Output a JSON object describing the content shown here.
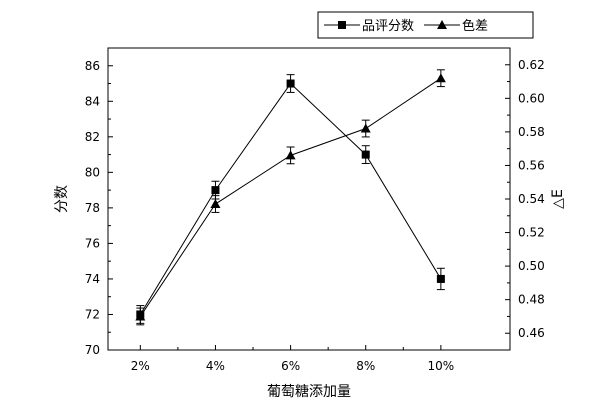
{
  "chart_data": {
    "type": "line",
    "categories": [
      "2%",
      "4%",
      "6%",
      "8%",
      "10%"
    ],
    "xlabel": "葡萄糖添加量",
    "ylabel_left": "分数",
    "ylabel_right": "△E",
    "ylim_left": [
      70,
      87
    ],
    "yticks_left": [
      70,
      72,
      74,
      76,
      78,
      80,
      82,
      84,
      86
    ],
    "ylim_right": [
      0.45,
      0.63
    ],
    "yticks_right": [
      0.46,
      0.48,
      0.5,
      0.52,
      0.54,
      0.56,
      0.58,
      0.6,
      0.62
    ],
    "grid": false,
    "legend_position": "top-right",
    "series": [
      {
        "name": "品评分数",
        "axis": "left",
        "marker": "square",
        "values": [
          72.0,
          79.0,
          85.0,
          81.0,
          74.0
        ],
        "errors": [
          0.5,
          0.5,
          0.5,
          0.5,
          0.6
        ]
      },
      {
        "name": "色差",
        "axis": "right",
        "marker": "triangle",
        "values": [
          0.47,
          0.537,
          0.566,
          0.582,
          0.612
        ],
        "errors": [
          0.005,
          0.005,
          0.005,
          0.005,
          0.005
        ]
      }
    ]
  }
}
